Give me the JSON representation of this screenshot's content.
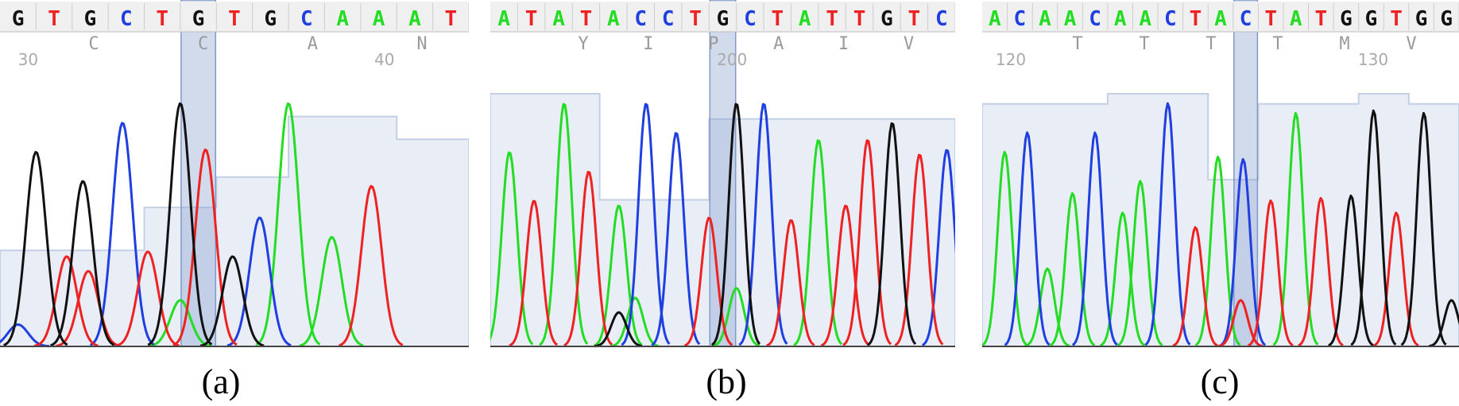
{
  "colors": {
    "A": "#22dd22",
    "C": "#1f3fe0",
    "G": "#111111",
    "T": "#ee2222",
    "highlight": "#7f99c8",
    "quality": "#e8edf6",
    "qualityLine": "#c4d0e6",
    "aa": "#9a9a9a",
    "pos": "#aaaaaa"
  },
  "chart_data": [
    {
      "type": "line",
      "panel": "a",
      "caption": "(a)",
      "bases": [
        "G",
        "T",
        "G",
        "C",
        "T",
        "G",
        "T",
        "G",
        "C",
        "A",
        "A",
        "A",
        "T"
      ],
      "amino_acids": [
        "C",
        "C",
        "A",
        "N"
      ],
      "position_labels": [
        "30",
        "40"
      ],
      "highlighted_base_index": 5,
      "quality": [
        0.38,
        0.38,
        0.38,
        0.38,
        0.55,
        0.55,
        0.67,
        0.67,
        0.91,
        0.91,
        0.91,
        0.82,
        0.82
      ],
      "peaks": [
        {
          "base": "G",
          "x": 0.5,
          "h": 0.8
        },
        {
          "base": "G",
          "x": 1.8,
          "h": 0.68
        },
        {
          "base": "C",
          "x": 2.9,
          "h": 0.92
        },
        {
          "base": "T",
          "x": 1.35,
          "h": 0.37
        },
        {
          "base": "T",
          "x": 1.95,
          "h": 0.31
        },
        {
          "base": "T",
          "x": 3.6,
          "h": 0.39
        },
        {
          "base": "G",
          "x": 4.5,
          "h": 1.0
        },
        {
          "base": "A",
          "x": 4.5,
          "h": 0.19
        },
        {
          "base": "T",
          "x": 5.2,
          "h": 0.81
        },
        {
          "base": "G",
          "x": 5.95,
          "h": 0.37
        },
        {
          "base": "C",
          "x": 6.7,
          "h": 0.53
        },
        {
          "base": "A",
          "x": 7.5,
          "h": 1.0
        },
        {
          "base": "A",
          "x": 8.7,
          "h": 0.45
        },
        {
          "base": "T",
          "x": 9.8,
          "h": 0.66
        },
        {
          "base": "C",
          "x": 0.0,
          "h": 0.09
        }
      ]
    },
    {
      "type": "line",
      "panel": "b",
      "caption": "(b)",
      "bases": [
        "A",
        "T",
        "A",
        "T",
        "A",
        "C",
        "C",
        "T",
        "G",
        "C",
        "T",
        "A",
        "T",
        "T",
        "G",
        "T",
        "C"
      ],
      "amino_acids": [
        "Y",
        "I",
        "P",
        "A",
        "I",
        "V"
      ],
      "position_labels": [
        "200"
      ],
      "highlighted_base_index": 8,
      "quality": [
        1.0,
        1.0,
        1.0,
        1.0,
        0.58,
        0.58,
        0.58,
        0.58,
        0.9,
        0.9,
        0.9,
        0.9,
        0.9,
        0.9,
        0.9,
        0.9,
        0.9
      ],
      "peaks": [
        {
          "base": "A",
          "x": 0.2,
          "h": 0.8
        },
        {
          "base": "T",
          "x": 1.1,
          "h": 0.6
        },
        {
          "base": "A",
          "x": 2.2,
          "h": 1.0
        },
        {
          "base": "T",
          "x": 3.1,
          "h": 0.72
        },
        {
          "base": "A",
          "x": 4.2,
          "h": 0.58
        },
        {
          "base": "A",
          "x": 4.8,
          "h": 0.2
        },
        {
          "base": "G",
          "x": 4.2,
          "h": 0.14
        },
        {
          "base": "C",
          "x": 5.2,
          "h": 1.0
        },
        {
          "base": "C",
          "x": 6.3,
          "h": 0.88
        },
        {
          "base": "T",
          "x": 7.5,
          "h": 0.53
        },
        {
          "base": "G",
          "x": 8.5,
          "h": 1.0
        },
        {
          "base": "A",
          "x": 8.5,
          "h": 0.24
        },
        {
          "base": "C",
          "x": 9.5,
          "h": 1.0
        },
        {
          "base": "T",
          "x": 10.5,
          "h": 0.52
        },
        {
          "base": "A",
          "x": 11.5,
          "h": 0.85
        },
        {
          "base": "T",
          "x": 12.5,
          "h": 0.58
        },
        {
          "base": "T",
          "x": 13.3,
          "h": 0.85
        },
        {
          "base": "G",
          "x": 14.2,
          "h": 0.92
        },
        {
          "base": "T",
          "x": 15.2,
          "h": 0.79
        },
        {
          "base": "C",
          "x": 16.2,
          "h": 0.81
        }
      ]
    },
    {
      "type": "line",
      "panel": "c",
      "caption": "(c)",
      "bases": [
        "A",
        "C",
        "A",
        "A",
        "C",
        "A",
        "A",
        "C",
        "T",
        "A",
        "C",
        "T",
        "A",
        "T",
        "G",
        "G",
        "T",
        "G",
        "G"
      ],
      "amino_acids": [
        "T",
        "T",
        "T",
        "T",
        "M",
        "V"
      ],
      "position_labels": [
        "120",
        "130"
      ],
      "highlighted_base_index": 10,
      "quality": [
        0.96,
        0.96,
        0.96,
        0.96,
        0.96,
        1.0,
        1.0,
        1.0,
        1.0,
        0.66,
        0.66,
        0.96,
        0.96,
        0.96,
        0.96,
        1.0,
        1.0,
        0.96,
        0.96
      ],
      "peaks": [
        {
          "base": "A",
          "x": 0.4,
          "h": 0.8
        },
        {
          "base": "C",
          "x": 1.3,
          "h": 0.88
        },
        {
          "base": "A",
          "x": 2.1,
          "h": 0.32
        },
        {
          "base": "A",
          "x": 3.1,
          "h": 0.63
        },
        {
          "base": "C",
          "x": 4.0,
          "h": 0.88
        },
        {
          "base": "A",
          "x": 5.1,
          "h": 0.55
        },
        {
          "base": "A",
          "x": 5.8,
          "h": 0.68
        },
        {
          "base": "C",
          "x": 6.9,
          "h": 1.0
        },
        {
          "base": "T",
          "x": 8.0,
          "h": 0.49
        },
        {
          "base": "A",
          "x": 8.9,
          "h": 0.78
        },
        {
          "base": "C",
          "x": 9.9,
          "h": 0.77
        },
        {
          "base": "T",
          "x": 9.8,
          "h": 0.19
        },
        {
          "base": "T",
          "x": 11.0,
          "h": 0.6
        },
        {
          "base": "A",
          "x": 12.0,
          "h": 0.96
        },
        {
          "base": "T",
          "x": 13.0,
          "h": 0.61
        },
        {
          "base": "G",
          "x": 14.2,
          "h": 0.62
        },
        {
          "base": "G",
          "x": 15.1,
          "h": 0.97
        },
        {
          "base": "T",
          "x": 16.0,
          "h": 0.55
        },
        {
          "base": "G",
          "x": 17.1,
          "h": 0.96
        },
        {
          "base": "G",
          "x": 18.2,
          "h": 0.19
        }
      ]
    }
  ]
}
